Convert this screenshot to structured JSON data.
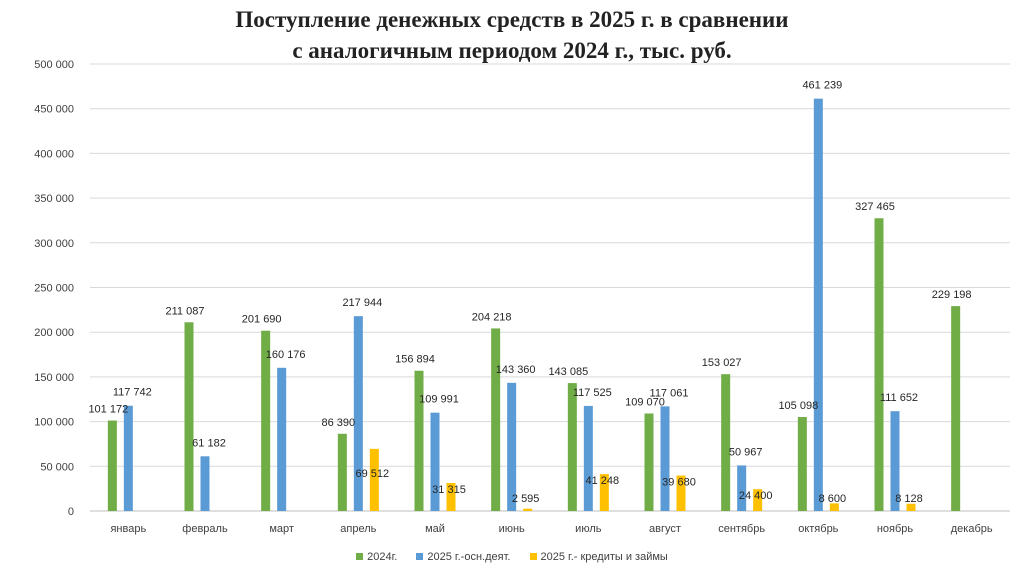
{
  "chart_data": {
    "type": "bar",
    "title": "Поступление денежных средств в 2025 г. в сравнении",
    "subtitle": "с аналогичным периодом 2024 г., тыс. руб.",
    "categories": [
      "январь",
      "февраль",
      "март",
      "апрель",
      "май",
      "июнь",
      "июль",
      "август",
      "сентябрь",
      "октябрь",
      "ноябрь",
      "декабрь"
    ],
    "series": [
      {
        "name": "2024г.",
        "color": "#70AD47",
        "values": [
          101172,
          211087,
          201690,
          86390,
          156894,
          204218,
          143085,
          109070,
          153027,
          105098,
          327465,
          229198
        ],
        "labels": [
          "101 172",
          "211 087",
          "201 690",
          "86 390",
          "156 894",
          "204 218",
          "143 085",
          "109 070",
          "153 027",
          "105 098",
          "327 465",
          "229 198"
        ]
      },
      {
        "name": "2025 г.-осн.деят.",
        "color": "#5B9BD5",
        "values": [
          117742,
          61182,
          160176,
          217944,
          109991,
          143360,
          117525,
          117061,
          50967,
          461239,
          111652,
          null
        ],
        "labels": [
          "117 742",
          "61 182",
          "160 176",
          "217 944",
          "109 991",
          "143 360",
          "117 525",
          "117 061",
          "50 967",
          "461 239",
          "111 652",
          ""
        ]
      },
      {
        "name": "2025 г.- кредиты и займы",
        "color": "#FFC000",
        "values": [
          null,
          null,
          null,
          69512,
          31315,
          2595,
          41248,
          39680,
          24400,
          8600,
          8128,
          null
        ],
        "labels": [
          "",
          "",
          "",
          "69 512",
          "31 315",
          "2 595",
          "41 248",
          "39 680",
          "24 400",
          "8 600",
          "8 128",
          ""
        ]
      }
    ],
    "yticks": [
      "0",
      "50 000",
      "100 000",
      "150 000",
      "200 000",
      "250 000",
      "300 000",
      "350 000",
      "400 000",
      "450 000",
      "500 000"
    ],
    "ylim": [
      0,
      500000
    ],
    "grid": true,
    "legend_position": "bottom"
  }
}
